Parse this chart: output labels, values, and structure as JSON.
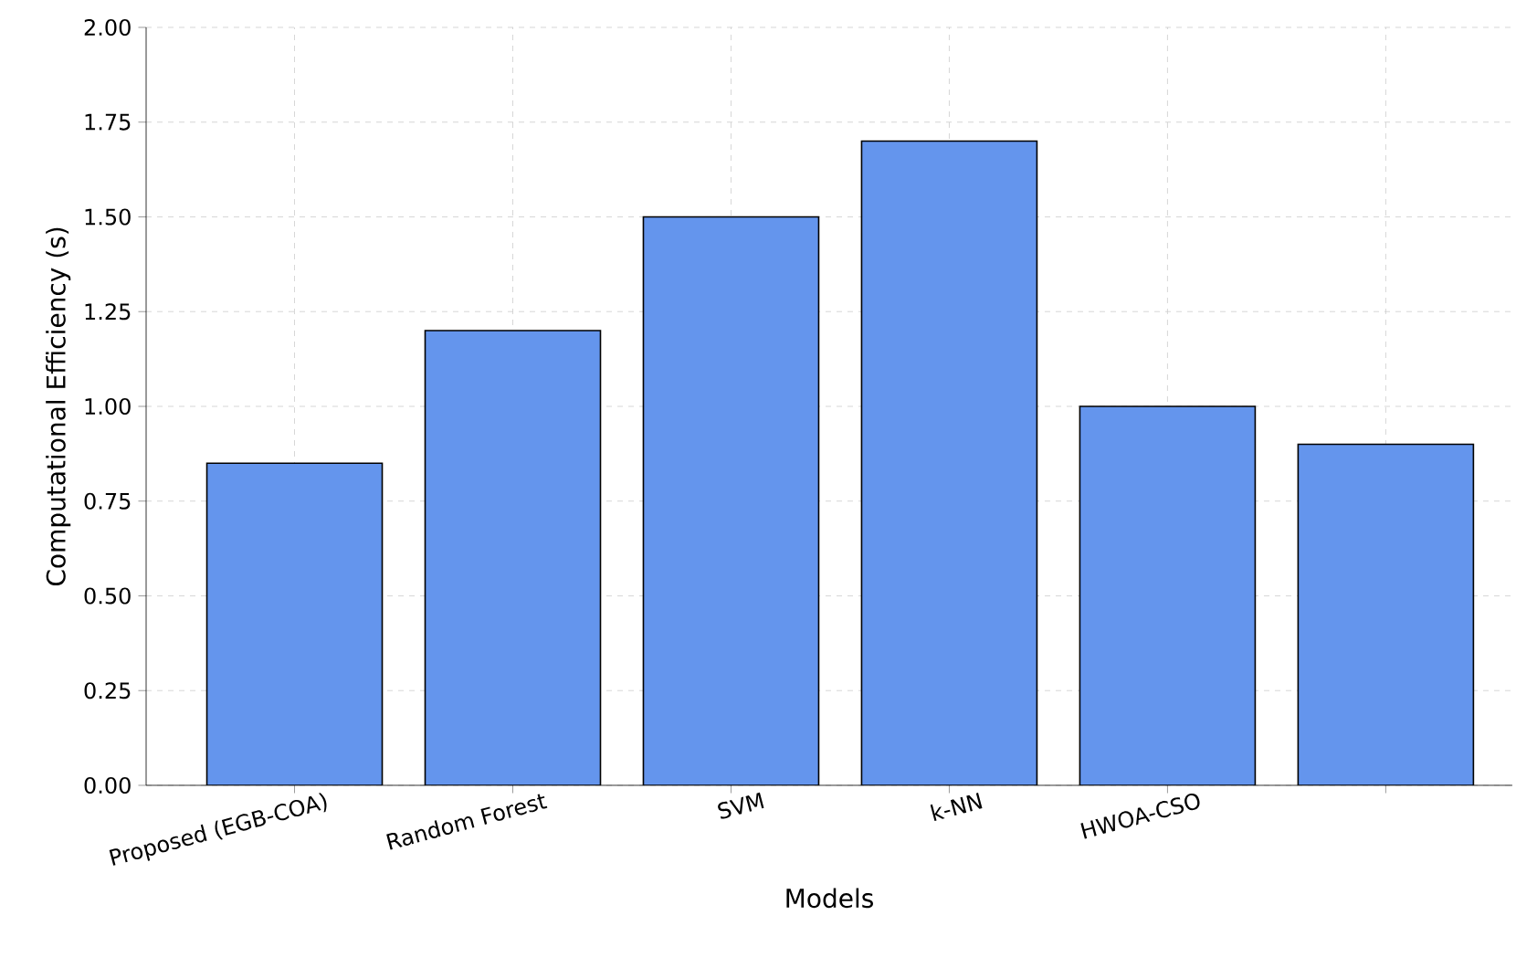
{
  "chart_data": {
    "type": "bar",
    "xlabel": "Models",
    "ylabel": "Computational Efficiency (s)",
    "categories": [
      "Proposed (EGB-COA)",
      "Random Forest",
      "SVM",
      "k-NN",
      "HWOA-CSO",
      null
    ],
    "values": [
      0.85,
      1.2,
      1.5,
      1.7,
      1.0,
      0.9
    ],
    "color": "#6495ed",
    "ylim": [
      0,
      2
    ],
    "yticks": [
      {
        "value": 0,
        "label": "0.00"
      },
      {
        "value": 0.25,
        "label": "0.25"
      },
      {
        "value": 0.5,
        "label": "0.50"
      },
      {
        "value": 0.75,
        "label": "0.75"
      },
      {
        "value": 1,
        "label": "1.00"
      },
      {
        "value": 1.25,
        "label": "1.25"
      },
      {
        "value": 1.5,
        "label": "1.50"
      },
      {
        "value": 1.75,
        "label": "1.75"
      },
      {
        "value": 2,
        "label": "2.00"
      }
    ],
    "grid": true
  }
}
